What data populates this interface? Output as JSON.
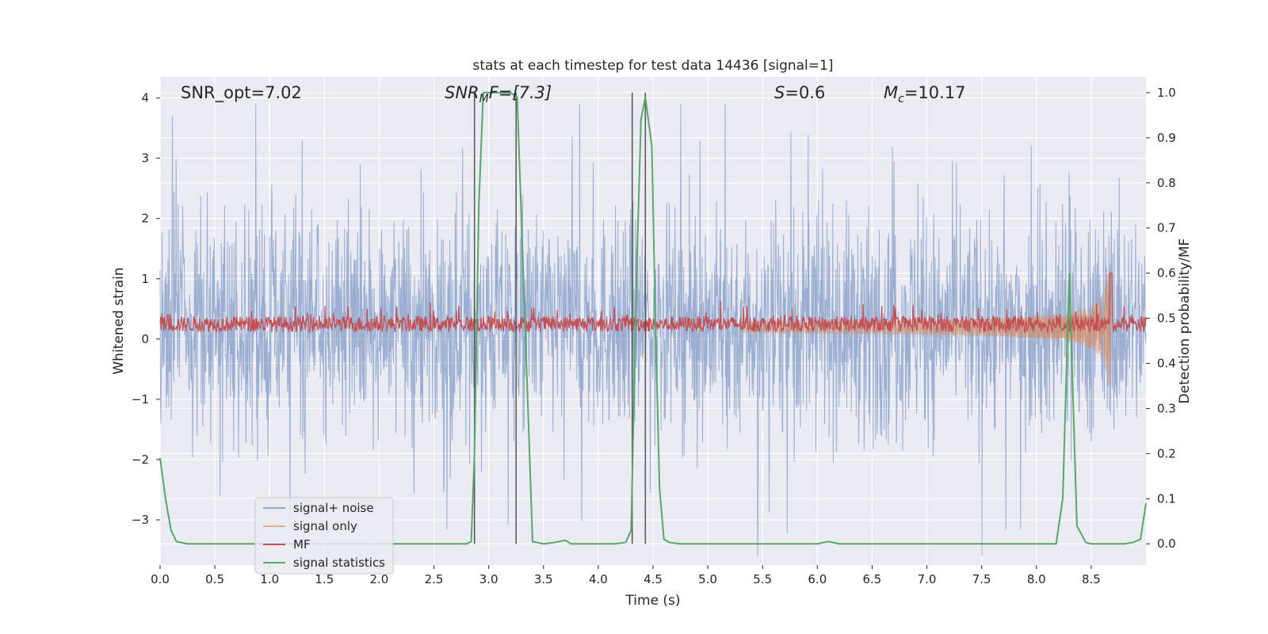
{
  "chart_data": {
    "type": "line",
    "title": "stats at each timestep for test data 14436 [signal=1]",
    "xlabel": "Time (s)",
    "ylabel": "Whitened strain",
    "y2label": "Detection probability/MF",
    "xlim": [
      0.0,
      9.0
    ],
    "ylim": [
      -3.75,
      4.35
    ],
    "y2lim": [
      -0.047,
      1.035
    ],
    "xticks": [
      0.0,
      0.5,
      1.0,
      1.5,
      2.0,
      2.5,
      3.0,
      3.5,
      4.0,
      4.5,
      5.0,
      5.5,
      6.0,
      6.5,
      7.0,
      7.5,
      8.0,
      8.5
    ],
    "yticks": [
      -3,
      -2,
      -1,
      0,
      1,
      2,
      3,
      4
    ],
    "y2ticks": [
      0.0,
      0.1,
      0.2,
      0.3,
      0.4,
      0.5,
      0.6,
      0.7,
      0.8,
      0.9,
      1.0
    ],
    "grid": true,
    "legend_position": "lower-left",
    "annotations": {
      "snr_opt": "SNR_opt=7.02",
      "snr_mf_symbol": "SNR",
      "snr_mf_subscript": "M",
      "snr_mf_rest": "F=[7.3]",
      "s_symbol": "S",
      "s_value": "=0.6",
      "mc_symbol": "M",
      "mc_subscript": "c",
      "mc_value": "=10.17"
    },
    "vertical_lines_s": [
      2.87,
      3.25,
      4.31,
      4.43
    ],
    "series": [
      {
        "name": "signal+ noise",
        "color": "#4c72b0",
        "description": "whitened strain, dense noise trace roughly in [-3.5, 4]"
      },
      {
        "name": "signal only",
        "color": "#dd8452",
        "description": "chirp signal growing in amplitude toward ~8.7 s, peak ~±1.3"
      },
      {
        "name": "MF",
        "color": "#c44e52",
        "description": "matched-filter output on right axis, ~0.45-0.55 with spike ~0.6 near 8.68 s"
      },
      {
        "name": "signal statistics",
        "color": "#55a868",
        "x": [
          0.0,
          0.05,
          0.1,
          0.15,
          0.25,
          0.5,
          1.0,
          1.5,
          2.0,
          2.5,
          2.8,
          2.84,
          2.87,
          2.91,
          2.95,
          3.0,
          3.1,
          3.2,
          3.26,
          3.33,
          3.4,
          3.5,
          3.6,
          3.7,
          3.75,
          3.85,
          4.0,
          4.15,
          4.25,
          4.3,
          4.35,
          4.39,
          4.43,
          4.49,
          4.52,
          4.56,
          4.6,
          4.65,
          4.75,
          5.0,
          5.5,
          5.8,
          6.0,
          6.1,
          6.2,
          6.5,
          7.0,
          7.5,
          8.0,
          8.18,
          8.24,
          8.3,
          8.37,
          8.45,
          8.5,
          8.6,
          8.7,
          8.8,
          8.88,
          8.95,
          9.0
        ],
        "y": [
          0.19,
          0.1,
          0.03,
          0.005,
          0.0,
          0.0,
          0.0,
          0.0,
          0.0,
          0.0,
          0.0,
          0.005,
          0.2,
          0.75,
          1.0,
          1.0,
          1.0,
          1.0,
          0.99,
          0.5,
          0.005,
          0.0,
          0.003,
          0.008,
          0.0,
          0.0,
          0.0,
          0.0,
          0.003,
          0.03,
          0.6,
          0.94,
          0.99,
          0.88,
          0.5,
          0.12,
          0.01,
          0.003,
          0.0,
          0.0,
          0.0,
          0.0,
          0.0,
          0.005,
          0.0,
          0.0,
          0.0,
          0.0,
          0.0,
          0.0,
          0.1,
          0.6,
          0.04,
          0.003,
          0.0,
          0.0,
          0.0,
          0.0,
          0.003,
          0.01,
          0.09
        ]
      }
    ]
  }
}
